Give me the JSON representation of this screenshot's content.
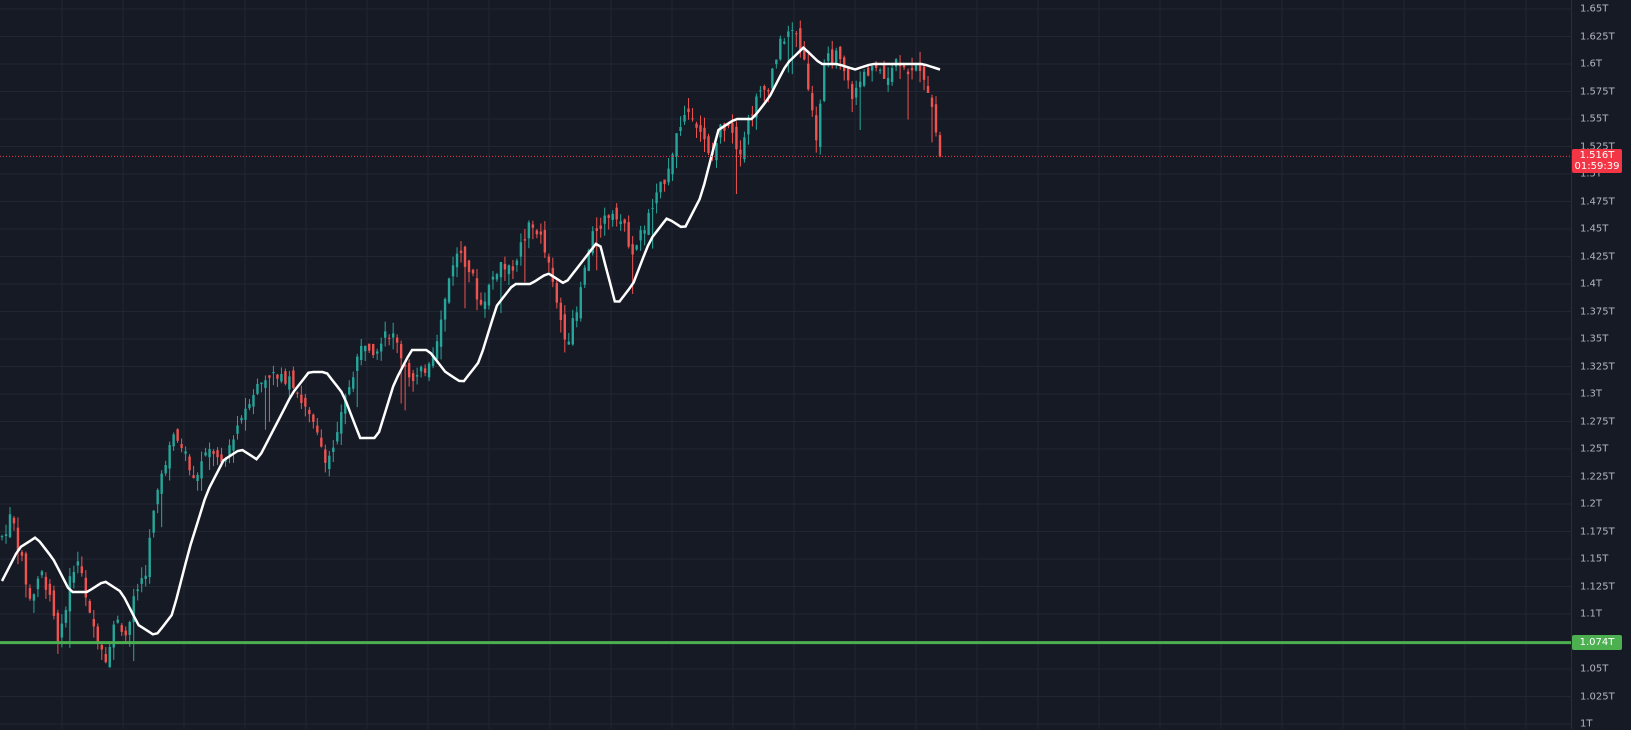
{
  "chart_data": {
    "type": "candlestick",
    "ylim": [
      1.0,
      1.65
    ],
    "y_ticks": [
      {
        "value": 1.65,
        "label": "1.65T"
      },
      {
        "value": 1.625,
        "label": "1.625T"
      },
      {
        "value": 1.6,
        "label": "1.6T"
      },
      {
        "value": 1.575,
        "label": "1.575T"
      },
      {
        "value": 1.55,
        "label": "1.55T"
      },
      {
        "value": 1.525,
        "label": "1.525T"
      },
      {
        "value": 1.5,
        "label": "1.5T"
      },
      {
        "value": 1.475,
        "label": "1.475T"
      },
      {
        "value": 1.45,
        "label": "1.45T"
      },
      {
        "value": 1.425,
        "label": "1.425T"
      },
      {
        "value": 1.4,
        "label": "1.4T"
      },
      {
        "value": 1.375,
        "label": "1.375T"
      },
      {
        "value": 1.35,
        "label": "1.35T"
      },
      {
        "value": 1.325,
        "label": "1.325T"
      },
      {
        "value": 1.3,
        "label": "1.3T"
      },
      {
        "value": 1.275,
        "label": "1.275T"
      },
      {
        "value": 1.25,
        "label": "1.25T"
      },
      {
        "value": 1.225,
        "label": "1.225T"
      },
      {
        "value": 1.2,
        "label": "1.2T"
      },
      {
        "value": 1.175,
        "label": "1.175T"
      },
      {
        "value": 1.15,
        "label": "1.15T"
      },
      {
        "value": 1.125,
        "label": "1.125T"
      },
      {
        "value": 1.1,
        "label": "1.1T"
      },
      {
        "value": 1.075,
        "label": "1.075T"
      },
      {
        "value": 1.05,
        "label": "1.05T"
      },
      {
        "value": 1.025,
        "label": "1.025T"
      },
      {
        "value": 1.0,
        "label": "1T"
      }
    ],
    "current_price": {
      "value": 1.516,
      "label": "1.516T",
      "countdown": "01:59:39"
    },
    "support_line": {
      "value": 1.074,
      "label": "1.074T"
    },
    "colors": {
      "background": "#161a25",
      "grid": "#222633",
      "up": "#26a69a",
      "down": "#ef5350",
      "moving_average": "#ffffff",
      "support": "#4caf50",
      "current": "#f23645",
      "axis_text": "#b2b5be"
    },
    "close_path": [
      1.17,
      1.19,
      1.15,
      1.11,
      1.14,
      1.12,
      1.07,
      1.13,
      1.15,
      1.1,
      1.08,
      1.06,
      1.1,
      1.08,
      1.12,
      1.14,
      1.2,
      1.24,
      1.26,
      1.25,
      1.22,
      1.24,
      1.25,
      1.23,
      1.26,
      1.28,
      1.3,
      1.31,
      1.32,
      1.31,
      1.32,
      1.3,
      1.28,
      1.26,
      1.24,
      1.26,
      1.3,
      1.33,
      1.35,
      1.34,
      1.36,
      1.35,
      1.33,
      1.31,
      1.32,
      1.34,
      1.37,
      1.42,
      1.43,
      1.41,
      1.38,
      1.4,
      1.42,
      1.41,
      1.43,
      1.45,
      1.45,
      1.42,
      1.38,
      1.35,
      1.37,
      1.42,
      1.45,
      1.46,
      1.47,
      1.45,
      1.43,
      1.45,
      1.47,
      1.49,
      1.52,
      1.55,
      1.56,
      1.54,
      1.51,
      1.54,
      1.55,
      1.52,
      1.55,
      1.57,
      1.58,
      1.61,
      1.63,
      1.625,
      1.6,
      1.53,
      1.6,
      1.61,
      1.59,
      1.57,
      1.59,
      1.6,
      1.585,
      1.6,
      1.605,
      1.59,
      1.6,
      1.57,
      1.516
    ],
    "moving_average_path": [
      1.13,
      1.16,
      1.17,
      1.15,
      1.12,
      1.12,
      1.13,
      1.12,
      1.09,
      1.08,
      1.1,
      1.16,
      1.21,
      1.24,
      1.25,
      1.24,
      1.27,
      1.3,
      1.32,
      1.32,
      1.3,
      1.26,
      1.26,
      1.31,
      1.34,
      1.34,
      1.32,
      1.31,
      1.33,
      1.38,
      1.4,
      1.4,
      1.41,
      1.4,
      1.42,
      1.44,
      1.38,
      1.4,
      1.44,
      1.46,
      1.45,
      1.48,
      1.54,
      1.55,
      1.55,
      1.57,
      1.6,
      1.615,
      1.6,
      1.6,
      1.595,
      1.6,
      1.6,
      1.6,
      1.6,
      1.595
    ]
  }
}
